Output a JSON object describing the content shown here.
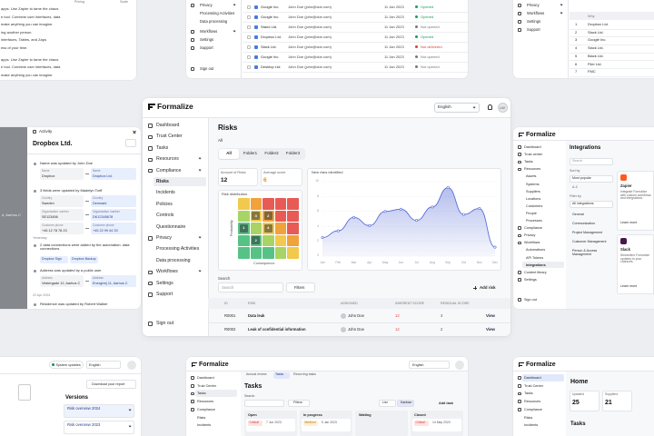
{
  "chart_data": {
    "type": "line",
    "title": "New risks identified",
    "x": [
      "Jan",
      "Feb",
      "Mar",
      "Apr",
      "May",
      "Jun",
      "Jul",
      "Aug",
      "Sep",
      "Oct",
      "Nov",
      "Dec"
    ],
    "values": [
      2.5,
      3.4,
      5.2,
      4.1,
      6.0,
      6.3,
      4.8,
      6.6,
      9.2,
      5.6,
      6.4,
      1.2
    ],
    "color": "#5b6fd6",
    "ylim": [
      0,
      10
    ],
    "yticks": [
      0,
      2,
      4,
      6,
      8,
      10
    ],
    "grid": true
  },
  "main": {
    "app_name": "Formalize",
    "language": "English",
    "avatar": "LW",
    "sidebar": [
      "Dashboard",
      "Trust Center",
      "Tasks",
      "Resources",
      "Compliance",
      "Risks",
      "Incidents",
      "Policies",
      "Controls",
      "Questionnaire",
      "Privacy",
      "Processing Activities",
      "Data processing",
      "Workflows",
      "Settings",
      "Support"
    ],
    "sign_out": "Sign out",
    "title": "Risks",
    "filter_label": "All",
    "tabs": [
      "All",
      "Folder1",
      "Folder2",
      "Folder3"
    ],
    "stats": [
      {
        "label": "Amount of Risks",
        "value": 12
      },
      {
        "label": "Average score",
        "value": 6
      }
    ],
    "search_label": "Search",
    "search_placeholder": "Search",
    "filters": "Filters",
    "add_risk": "Add risk",
    "table": {
      "headers": [
        "ID",
        "RISK",
        "ASSIGNED",
        "INHERENT SCORE",
        "RESIDUAL SCORE"
      ],
      "rows": [
        {
          "id": "R0001",
          "risk": "Data leak",
          "assigned": "John Doe",
          "inherent": "12",
          "residual": "3",
          "action": "View"
        },
        {
          "id": "R0002",
          "risk": "Leak of confidential information",
          "assigned": "John Doe",
          "inherent": "12",
          "residual": "2",
          "action": "View"
        }
      ]
    }
  },
  "risk_distribution": {
    "title": "Risk distribution",
    "y_label": "Probability",
    "x_label": "Consequence",
    "cells": [
      [
        null,
        null,
        null,
        null,
        null
      ],
      [
        null,
        3,
        2,
        null,
        null
      ],
      [
        1,
        null,
        4,
        null,
        null
      ],
      [
        null,
        2,
        null,
        null,
        null
      ],
      [
        null,
        null,
        null,
        null,
        null
      ]
    ]
  },
  "top_left": {
    "header": [
      "Pricing",
      "Scale"
    ],
    "lines": [
      "apps. Use Zapier to tame the chaos",
      "e tool. Combine user interfaces, data",
      "make anything you can imagine.",
      "ing another person.",
      "interfaces, Tables, and Zaps",
      "ess of your time.",
      "apps. Use Zapier to tame the chaos",
      "e tool. Combine user interfaces, data",
      "make anything you can imagine."
    ]
  },
  "top_middle": {
    "sidebar": [
      "Privacy",
      "Processing Activities",
      "Data processing",
      "Workflows",
      "Settings",
      "Support"
    ],
    "sign_out": "Sign out",
    "rows": [
      {
        "company": "Google Inc.",
        "contact": "John Doe (john@doe.com)",
        "date": "11 Jan 2023",
        "status": "Opened",
        "status_color": "#1a9e5c"
      },
      {
        "company": "Google Inc.",
        "contact": "John Doe (john@doe.com)",
        "date": "11 Jan 2023",
        "status": "Opened",
        "status_color": "#1a9e5c"
      },
      {
        "company": "Stand Ltd.",
        "contact": "John Doe (john@doe.com)",
        "date": "11 Jan 2023",
        "status": "Not opened",
        "status_color": "#777777"
      },
      {
        "company": "Dropbox Ltd.",
        "contact": "John Doe (john@doe.com)",
        "date": "11 Jan 2023",
        "status": "Opened",
        "status_color": "#1a9e5c"
      },
      {
        "company": "Slack Ltd.",
        "contact": "John Doe (john@doe.com)",
        "date": "11 Jan 2023",
        "status": "Not delivered",
        "status_color": "#d9433b"
      },
      {
        "company": "Google Inc.",
        "contact": "John Doe (john@doe.com)",
        "date": "11 Jan 2023",
        "status": "Not opened",
        "status_color": "#777777"
      },
      {
        "company": "Desktop Ltd.",
        "contact": "John Doe (john@doe.com)",
        "date": "11 Jan 2023",
        "status": "Not opened",
        "status_color": "#777777"
      }
    ]
  },
  "top_right": {
    "sidebar": [
      "Privacy",
      "Workflows",
      "Settings",
      "Support"
    ],
    "header": "Why",
    "rows": [
      [
        "1",
        "Dropbox Ltd."
      ],
      [
        "2",
        "Slack Ltd."
      ],
      [
        "3",
        "Google Inc."
      ],
      [
        "4",
        "Slack Ltd."
      ],
      [
        "5",
        "Black Ltd."
      ],
      [
        "6",
        "Filer Ltd."
      ],
      [
        "7",
        "FMC"
      ]
    ]
  },
  "activity": {
    "side_text": "d, Aarhus C",
    "title": "Activity",
    "company": "Dropbox Ltd.",
    "day_labels": [
      "Yesterday",
      "22 Apr 2024"
    ],
    "entries": [
      {
        "text": "Name was updated by John Doe",
        "changes": [
          {
            "label": "Name",
            "from": "Dropbox",
            "to": "Dropbox Ltd."
          }
        ]
      },
      {
        "text": "3 fields were updated by Madelyn Torff",
        "changes": [
          {
            "label": "Country",
            "from": "Sweden",
            "to": "Denmark"
          },
          {
            "label": "Organization number",
            "from": "SE123456",
            "to": "DK12345678"
          },
          {
            "label": "Customer phone",
            "from": "+46 12 78 78 23",
            "to": "+45 22 99 44 33"
          }
        ]
      },
      {
        "text": "2 data connections were added by the automation: data connections",
        "chips": [
          "Dropbox Sign",
          "Dropbox Backup"
        ]
      },
      {
        "text": "Address was updated by a public user",
        "changes": [
          {
            "label": "Address",
            "from": "Vestergade 12, Aarhus C",
            "to": "Energivej 11, Aarhus C"
          }
        ]
      },
      {
        "text": "Residence was updated by Robert Walker"
      }
    ]
  },
  "integrations": {
    "app_name": "Formalize",
    "sidebar": [
      "Dashboard",
      "Trust center",
      "Tasks",
      "Resources",
      "Assets",
      "Systems",
      "Suppliers",
      "Locations",
      "Customers",
      "People",
      "Processes",
      "Compliance",
      "Privacy",
      "Workflows",
      "Automations",
      "API Tokens",
      "Integrations",
      "Content library",
      "Settings"
    ],
    "sign_out": "Sign out",
    "title": "Integrations",
    "search": "Search",
    "sort_label": "Sort by",
    "sort_value": "Most popular",
    "sort_alt": "A-Z",
    "filter_label": "Filter by",
    "filters": [
      "All integrations",
      "General",
      "Communication",
      "Project Management",
      "Customer Management",
      "Person & Access Management"
    ],
    "cards": [
      {
        "name": "Zapier",
        "text": "Integrate Formalize with custom workflows and integrations.",
        "link": "Learn more"
      },
      {
        "name": "Slack",
        "text": "Streamline Formalize updates to your channels.",
        "link": "Learn more"
      }
    ]
  },
  "versions": {
    "status": "System updates",
    "language": "English",
    "download": "Download your report",
    "title": "Versions",
    "items": [
      "Risk overview 2024",
      "Risk overview 2023"
    ]
  },
  "tasks": {
    "app_name": "Formalize",
    "language": "English",
    "sidebar": [
      "Dashboard",
      "Trust Center",
      "Tasks",
      "Resources",
      "Compliance",
      "Risks",
      "Incidents"
    ],
    "tabs": [
      "Annual review",
      "Tasks",
      "Recurring tasks"
    ],
    "title": "Tasks",
    "search": "Search",
    "filters": "Filters",
    "views": [
      "List",
      "Kanban"
    ],
    "add": "Add task",
    "columns": [
      "Open",
      "In progress",
      "Waiting",
      "Closed"
    ],
    "cards": [
      {
        "tag": "Critical",
        "date": "7 Jun 2023"
      },
      {
        "tag": "Medium",
        "date": "5 Jan 2023"
      },
      null,
      {
        "tag": "Critical",
        "date": "14 May 2023"
      }
    ]
  },
  "home": {
    "app_name": "Formalize",
    "sidebar": [
      "Dashboard",
      "Trust Center",
      "Tasks",
      "Resources",
      "Compliance",
      "Risks",
      "Incidents"
    ],
    "title": "Home",
    "stats": [
      {
        "label": "Updated",
        "value": "25"
      },
      {
        "label": "Suppliers",
        "value": "21"
      }
    ],
    "section": "Tasks"
  }
}
